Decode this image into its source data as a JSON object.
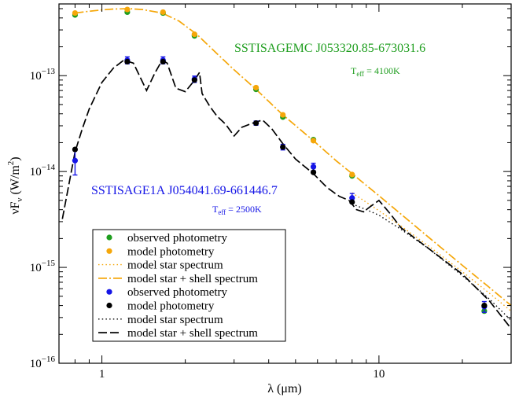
{
  "chart_data": {
    "type": "scatter",
    "xscale": "log",
    "yscale": "log",
    "xlim": [
      0.7,
      30
    ],
    "ylim": [
      1e-16,
      5.6e-13
    ],
    "xlabel": "λ (μm)",
    "ylabel": {
      "main": "νF",
      "sub": "ν",
      "units": " (W/m",
      "sup": "2",
      "close": ")"
    },
    "xticks": [
      {
        "value": 1,
        "label": "1"
      },
      {
        "value": 10,
        "label": "10"
      }
    ],
    "yticks": [
      {
        "value": 1e-16,
        "base": "10",
        "exp": "−16"
      },
      {
        "value": 1e-15,
        "base": "10",
        "exp": "−15"
      },
      {
        "value": 1e-14,
        "base": "10",
        "exp": "−14"
      },
      {
        "value": 1e-13,
        "base": "10",
        "exp": "−13"
      }
    ],
    "annotations": [
      {
        "id": "lmc-name",
        "text": "SSTISAGEMC J053320.85-673031.6",
        "color": "#1f9e1f"
      },
      {
        "id": "lmc-teff",
        "main": "T",
        "sub": "eff",
        "rest": " = 4100K",
        "color": "#1f9e1f"
      },
      {
        "id": "smc-name",
        "text": "SSTISAGE1A J054041.69-661446.7",
        "color": "#1515e6"
      },
      {
        "id": "smc-teff",
        "main": "T",
        "sub": "eff",
        "rest": " = 2500K",
        "color": "#1515e6"
      }
    ],
    "colors": {
      "green": "#1f9e1f",
      "orange": "#f5a70a",
      "blue": "#1515e6",
      "black": "#000000"
    },
    "legend": {
      "position": "bottom-left",
      "entries": [
        {
          "label": "observed photometry",
          "kind": "marker",
          "color": "#1f9e1f"
        },
        {
          "label": "model photometry",
          "kind": "marker",
          "color": "#f5a70a"
        },
        {
          "label": "model star spectrum",
          "kind": "line",
          "style": "dotted",
          "color": "#f5a70a"
        },
        {
          "label": "model star + shell spectrum",
          "kind": "line",
          "style": "dashdot",
          "color": "#f5a70a"
        },
        {
          "label": "observed photometry",
          "kind": "marker",
          "color": "#1515e6"
        },
        {
          "label": "model photometry",
          "kind": "marker",
          "color": "#000000"
        },
        {
          "label": "model star spectrum",
          "kind": "line",
          "style": "dotted",
          "color": "#000000"
        },
        {
          "label": "model star + shell spectrum",
          "kind": "line",
          "style": "dashed",
          "color": "#000000"
        }
      ]
    },
    "series": [
      {
        "name": "model star spectrum (upper star)",
        "kind": "line",
        "style": "dotted",
        "color": "#f5a70a",
        "x": [
          8,
          10,
          12,
          15,
          20,
          25,
          30
        ],
        "y": [
          6e-15,
          3.9e-15,
          2.7e-15,
          1.7e-15,
          9e-16,
          5.4e-16,
          3.5e-16
        ]
      },
      {
        "name": "model star + shell spectrum (upper star)",
        "kind": "line",
        "style": "dashdot",
        "color": "#f5a70a",
        "x": [
          0.8,
          0.9,
          1.0,
          1.1,
          1.25,
          1.4,
          1.65,
          1.9,
          2.2,
          2.6,
          3.0,
          3.6,
          4.5,
          5.8,
          7.0,
          8.0,
          10,
          12,
          15,
          20,
          25,
          30
        ],
        "y": [
          4.5e-13,
          4.7e-13,
          4.85e-13,
          4.95e-13,
          5e-13,
          4.9e-13,
          4.5e-13,
          3.7e-13,
          2.7e-13,
          1.7e-13,
          1.15e-13,
          7.2e-14,
          3.9e-14,
          2.1e-14,
          1.3e-14,
          9.5e-15,
          5.6e-15,
          3.6e-15,
          2.1e-15,
          1.05e-15,
          6.2e-16,
          4e-16
        ]
      },
      {
        "name": "model star spectrum (lower star)",
        "kind": "line",
        "style": "dotted",
        "color": "#000000",
        "x": [
          8,
          9,
          10,
          12,
          15,
          20,
          25,
          30
        ],
        "y": [
          4.6e-15,
          4e-15,
          3.5e-15,
          2.5e-15,
          1.6e-15,
          8.2e-16,
          4.7e-16,
          2.8e-16
        ]
      },
      {
        "name": "model star + shell spectrum (lower star)",
        "kind": "line",
        "style": "dashed",
        "color": "#000000",
        "x": [
          0.72,
          0.75,
          0.8,
          0.85,
          0.9,
          1.0,
          1.1,
          1.2,
          1.3,
          1.45,
          1.55,
          1.65,
          1.72,
          1.85,
          2.0,
          2.15,
          2.25,
          2.3,
          2.45,
          2.6,
          2.8,
          3.0,
          3.2,
          3.5,
          3.8,
          4.1,
          4.5,
          5.0,
          5.8,
          6.5,
          7.2,
          7.8,
          8.3,
          8.8,
          9.3,
          10,
          11,
          12,
          15,
          20,
          25,
          30
        ],
        "y": [
          3.2e-15,
          6e-15,
          1.6e-14,
          2.8e-14,
          4.5e-14,
          8.5e-14,
          1.2e-13,
          1.45e-13,
          1.35e-13,
          7e-14,
          1.05e-13,
          1.45e-13,
          1.35e-13,
          7.4e-14,
          6.8e-14,
          8.8e-14,
          1.08e-13,
          6.5e-14,
          4.8e-14,
          3.8e-14,
          3.1e-14,
          2.35e-14,
          2.9e-14,
          3.2e-14,
          3.45e-14,
          2.8e-14,
          1.95e-14,
          1.35e-14,
          9.5e-15,
          6.8e-15,
          5.5e-15,
          5e-15,
          4e-15,
          3.8e-15,
          4.3e-15,
          5e-15,
          3.6e-15,
          2.6e-15,
          1.6e-15,
          8.5e-16,
          4.5e-16,
          2.3e-16
        ]
      },
      {
        "name": "observed photometry (upper star)",
        "kind": "marker",
        "color": "#1f9e1f",
        "x": [
          0.8,
          1.235,
          1.662,
          2.159,
          3.6,
          4.5,
          5.8,
          8.0,
          24
        ],
        "y": [
          4.3e-13,
          4.6e-13,
          4.5e-13,
          2.6e-13,
          7.2e-14,
          3.7e-14,
          2.15e-14,
          9e-15,
          3.5e-16
        ]
      },
      {
        "name": "model photometry (upper star)",
        "kind": "marker",
        "color": "#f5a70a",
        "x": [
          0.8,
          1.235,
          1.662,
          2.159,
          3.6,
          4.5,
          5.8,
          8.0,
          24
        ],
        "y": [
          4.5e-13,
          4.9e-13,
          4.6e-13,
          2.7e-13,
          7.5e-14,
          3.9e-14,
          2.1e-14,
          9.3e-15,
          4e-16
        ]
      },
      {
        "name": "observed photometry (lower star)",
        "kind": "marker",
        "color": "#1515e6",
        "x": [
          0.8,
          1.235,
          1.662,
          2.159,
          3.6,
          4.5,
          5.8,
          8.0,
          24
        ],
        "y": [
          1.3e-14,
          1.45e-13,
          1.45e-13,
          9.2e-14,
          3.2e-14,
          1.8e-14,
          1.12e-14,
          5.3e-15,
          3.9e-16
        ],
        "yerr": [
          3.8e-15,
          1.2e-14,
          1.2e-14,
          7e-15,
          1.6e-15,
          1.2e-15,
          1e-15,
          6e-16,
          5e-17
        ]
      },
      {
        "name": "model photometry (lower star)",
        "kind": "marker",
        "color": "#000000",
        "x": [
          0.8,
          1.235,
          1.662,
          2.159,
          3.6,
          4.5,
          5.8,
          8.0,
          24
        ],
        "y": [
          1.7e-14,
          1.4e-13,
          1.4e-13,
          9e-14,
          3.2e-14,
          1.8e-14,
          9.8e-15,
          4.8e-15,
          4e-16
        ]
      }
    ]
  }
}
